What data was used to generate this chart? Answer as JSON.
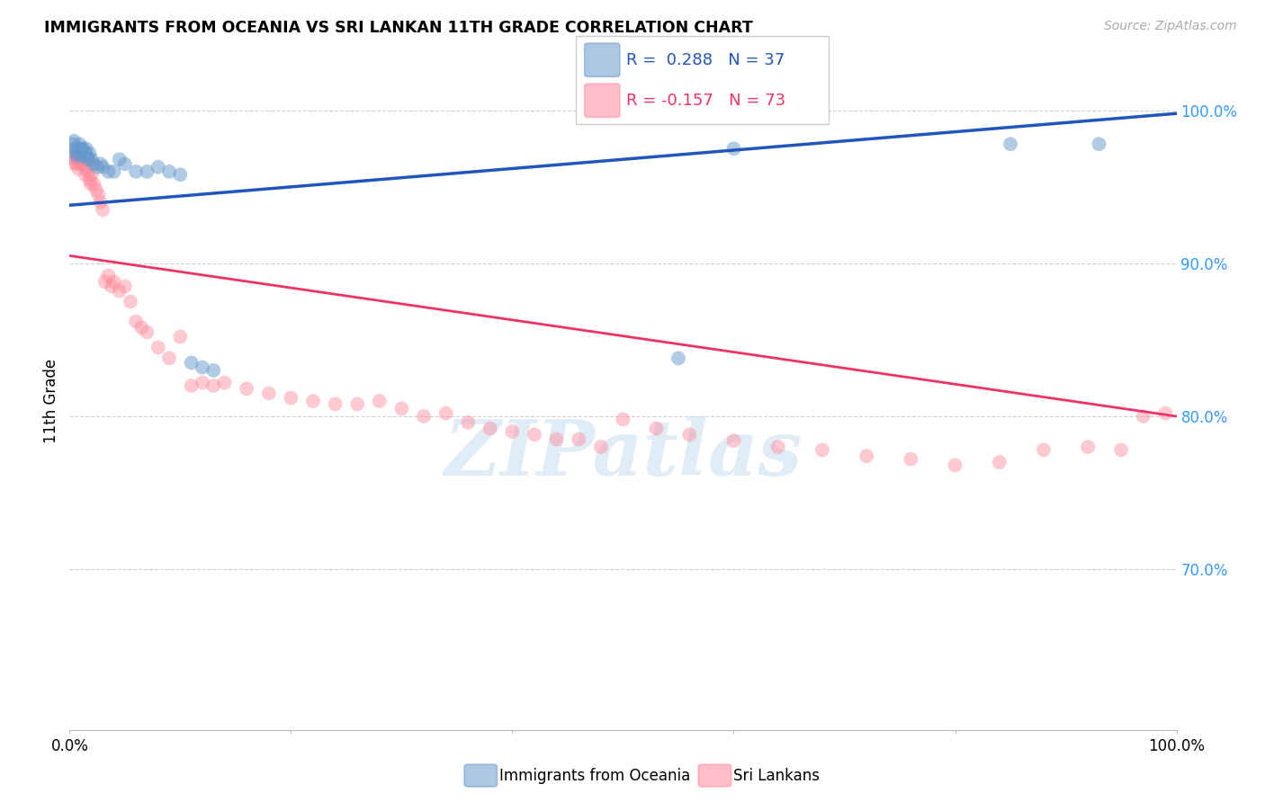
{
  "title": "IMMIGRANTS FROM OCEANIA VS SRI LANKAN 11TH GRADE CORRELATION CHART",
  "source": "Source: ZipAtlas.com",
  "ylabel": "11th Grade",
  "legend_blue_label": "Immigrants from Oceania",
  "legend_pink_label": "Sri Lankans",
  "legend_blue_r": "R =  0.288",
  "legend_blue_n": "N = 37",
  "legend_pink_r": "R = -0.157",
  "legend_pink_n": "N = 73",
  "xlim": [
    0.0,
    1.0
  ],
  "ylim": [
    0.595,
    1.025
  ],
  "yticks": [
    0.7,
    0.8,
    0.9,
    1.0
  ],
  "ytick_labels": [
    "70.0%",
    "80.0%",
    "90.0%",
    "100.0%"
  ],
  "blue_color": "#6699cc",
  "pink_color": "#ff8899",
  "blue_line_color": "#2255bb",
  "pink_line_color": "#ee3366",
  "watermark_color": "#cce0f0",
  "blue_x": [
    0.003,
    0.004,
    0.005,
    0.006,
    0.007,
    0.008,
    0.009,
    0.01,
    0.011,
    0.012,
    0.013,
    0.014,
    0.015,
    0.016,
    0.017,
    0.018,
    0.02,
    0.022,
    0.025,
    0.028,
    0.03,
    0.035,
    0.04,
    0.045,
    0.05,
    0.06,
    0.07,
    0.08,
    0.09,
    0.1,
    0.11,
    0.12,
    0.13,
    0.55,
    0.6,
    0.85,
    0.93
  ],
  "blue_y": [
    0.978,
    0.98,
    0.975,
    0.972,
    0.97,
    0.975,
    0.978,
    0.972,
    0.975,
    0.975,
    0.97,
    0.972,
    0.975,
    0.97,
    0.968,
    0.972,
    0.968,
    0.965,
    0.963,
    0.965,
    0.963,
    0.96,
    0.96,
    0.968,
    0.965,
    0.96,
    0.96,
    0.963,
    0.96,
    0.958,
    0.835,
    0.832,
    0.83,
    0.838,
    0.975,
    0.978,
    0.978
  ],
  "pink_x": [
    0.002,
    0.003,
    0.004,
    0.005,
    0.006,
    0.007,
    0.008,
    0.009,
    0.01,
    0.011,
    0.012,
    0.013,
    0.014,
    0.015,
    0.016,
    0.017,
    0.018,
    0.019,
    0.02,
    0.022,
    0.024,
    0.026,
    0.028,
    0.03,
    0.032,
    0.035,
    0.038,
    0.04,
    0.045,
    0.05,
    0.055,
    0.06,
    0.065,
    0.07,
    0.08,
    0.09,
    0.1,
    0.11,
    0.12,
    0.13,
    0.14,
    0.16,
    0.18,
    0.2,
    0.22,
    0.24,
    0.26,
    0.28,
    0.3,
    0.32,
    0.34,
    0.36,
    0.38,
    0.4,
    0.42,
    0.44,
    0.46,
    0.48,
    0.5,
    0.53,
    0.56,
    0.6,
    0.64,
    0.68,
    0.72,
    0.76,
    0.8,
    0.84,
    0.88,
    0.92,
    0.95,
    0.97,
    0.99
  ],
  "pink_y": [
    0.972,
    0.968,
    0.965,
    0.97,
    0.968,
    0.965,
    0.962,
    0.968,
    0.965,
    0.97,
    0.965,
    0.968,
    0.958,
    0.962,
    0.968,
    0.96,
    0.955,
    0.952,
    0.958,
    0.952,
    0.948,
    0.945,
    0.94,
    0.935,
    0.888,
    0.892,
    0.885,
    0.888,
    0.882,
    0.885,
    0.875,
    0.862,
    0.858,
    0.855,
    0.845,
    0.838,
    0.852,
    0.82,
    0.822,
    0.82,
    0.822,
    0.818,
    0.815,
    0.812,
    0.81,
    0.808,
    0.808,
    0.81,
    0.805,
    0.8,
    0.802,
    0.796,
    0.792,
    0.79,
    0.788,
    0.785,
    0.785,
    0.78,
    0.798,
    0.792,
    0.788,
    0.784,
    0.78,
    0.778,
    0.774,
    0.772,
    0.768,
    0.77,
    0.778,
    0.78,
    0.778,
    0.8,
    0.802
  ],
  "blue_trend_x0": 0.0,
  "blue_trend_x1": 1.0,
  "blue_trend_y0": 0.938,
  "blue_trend_y1": 0.998,
  "pink_trend_x0": 0.0,
  "pink_trend_x1": 1.0,
  "pink_trend_y0": 0.905,
  "pink_trend_y1": 0.8,
  "grid_color": "#cccccc",
  "background_color": "#ffffff"
}
